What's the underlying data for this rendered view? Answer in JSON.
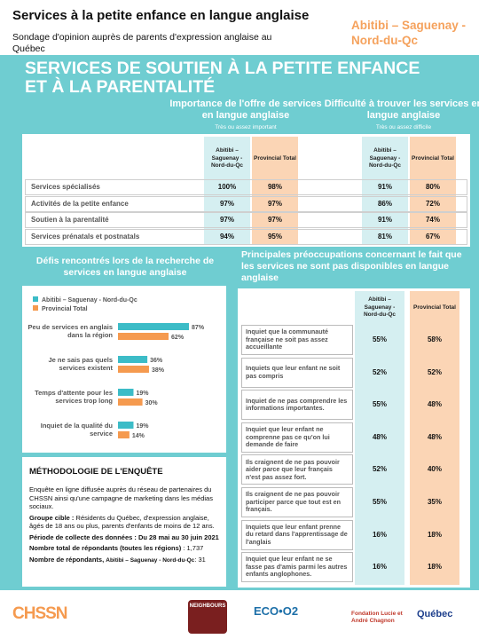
{
  "header": {
    "title": "Services à la petite enfance en langue anglaise",
    "subtitle": "Sondage d'opinion auprès de parents d'expression anglaise au Québec",
    "region": "Abitibi – Saguenay - Nord-du-Qc"
  },
  "banner": [
    "SERVICES DE SOUTIEN À LA PETITE ENFANCE",
    "ET À LA PARENTALITÉ"
  ],
  "table1": {
    "groups": [
      {
        "title": "Importance de l'offre de services en langue anglaise",
        "subtitle": "Très ou assez important"
      },
      {
        "title": "Difficulté à trouver les services en langue anglaise",
        "subtitle": "Très ou assez difficile"
      }
    ],
    "columns": [
      "Abitibi – Saguenay - Nord-du-Qc",
      "Provincial Total",
      "Abitibi – Saguenay - Nord-du-Qc",
      "Provincial Total"
    ],
    "rows": [
      [
        "Services spécialisés",
        "100%",
        "98%",
        "91%",
        "80%"
      ],
      [
        "Activités de la petite enfance",
        "97%",
        "97%",
        "86%",
        "72%"
      ],
      [
        "Soutien à la parentalité",
        "97%",
        "97%",
        "91%",
        "74%"
      ],
      [
        "Services prénatals et postnatals",
        "94%",
        "95%",
        "81%",
        "67%"
      ]
    ]
  },
  "chart_data": {
    "type": "bar",
    "orientation": "horizontal",
    "title": "Défis rencontrés lors de la recherche de services en langue anglaise",
    "categories": [
      "Peu de services en anglais dans la région",
      "Je ne sais pas quels services existent",
      "Temps d'attente pour les services trop long",
      "Inquiet de la qualité du service"
    ],
    "series": [
      {
        "name": "Abitibi – Saguenay - Nord-du-Qc",
        "color": "#3cbcc7",
        "values": [
          87,
          36,
          19,
          19
        ],
        "value_labels": [
          "87%",
          "36%",
          "19%",
          "19%"
        ]
      },
      {
        "name": "Provincial Total",
        "color": "#f59a4f",
        "values": [
          62,
          38,
          30,
          14
        ],
        "value_labels": [
          "62%",
          "38%",
          "30%",
          "14%"
        ]
      }
    ]
  },
  "table2": {
    "title": "Principales préoccupations concernant le fait que les services ne sont pas disponibles en langue anglaise",
    "columns": [
      "Abitibi – Saguenay - Nord-du-Qc",
      "Provincial Total"
    ],
    "rows": [
      [
        "Inquiet que la communauté française ne soit pas assez accueillante",
        "55%",
        "58%"
      ],
      [
        "Inquiets que leur enfant ne soit pas compris",
        "52%",
        "52%"
      ],
      [
        "Inquiet de ne pas comprendre les informations importantes.",
        "55%",
        "48%"
      ],
      [
        "Inquiet que leur enfant ne comprenne pas ce qu'on lui demande de faire",
        "48%",
        "48%"
      ],
      [
        "Ils craignent de ne pas pouvoir aider parce que leur français n'est pas assez fort.",
        "52%",
        "40%"
      ],
      [
        "Ils craignent de ne pas pouvoir participer parce que tout est en français.",
        "55%",
        "35%"
      ],
      [
        "Inquiets que leur enfant prenne du retard dans l'apprentissage de l'anglais",
        "16%",
        "18%"
      ],
      [
        "Inquiet que leur enfant ne se fasse pas d'amis parmi les autres enfants anglophones.",
        "16%",
        "18%"
      ]
    ]
  },
  "methodology": {
    "heading": "MÉTHODOLOGIE DE L'ENQUÊTE",
    "intro": "Enquête en ligne diffusée auprès du réseau de partenaires du CHSSN ainsi qu'une campagne de marketing dans les médias sociaux.",
    "items": [
      {
        "label": "Groupe cible :",
        "text": " Résidents du Québec, d'expression anglaise, âgés de 18 ans ou plus, parents d'enfants de moins de 12 ans."
      },
      {
        "label": "Période de collecte des données : Du 28 mai au 30 juin 2021",
        "text": ""
      },
      {
        "label": "Nombre total de répondants (toutes les régions)",
        "text": " : 1,737"
      },
      {
        "label": "Nombre de répondants, ",
        "region": "Abitibi – Saguenay - Nord-du-Qc",
        "text": ": 31"
      }
    ]
  },
  "footer": {
    "logos": [
      "CHSSN",
      "NEIGHBOURS",
      "ECO•O2",
      "Fondation Lucie et André Chagnon",
      "Québec"
    ]
  }
}
